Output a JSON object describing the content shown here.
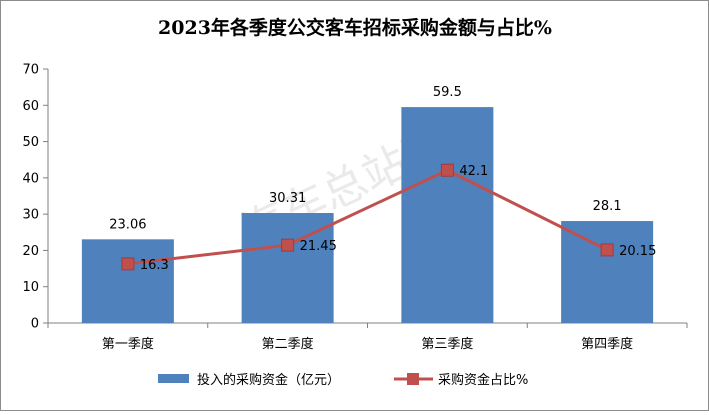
{
  "chart_data": {
    "type": "bar",
    "title": "2023年各季度公交客车招标采购金额与占比%",
    "categories": [
      "第一季度",
      "第二季度",
      "第三季度",
      "第四季度"
    ],
    "ylim": [
      0,
      70
    ],
    "yticks": [
      0,
      10,
      20,
      30,
      40,
      50,
      60,
      70
    ],
    "grid": false,
    "legend_position": "bottom",
    "series": [
      {
        "name": "投入的采购资金（亿元）",
        "kind": "bar",
        "color": "#4f81bd",
        "values": [
          23.06,
          30.31,
          59.5,
          28.1
        ],
        "labels": [
          "23.06",
          "30.31",
          "59.5",
          "28.1"
        ]
      },
      {
        "name": "采购资金占比%",
        "kind": "line",
        "color": "#c0504d",
        "values": [
          16.3,
          21.45,
          42.1,
          20.15
        ],
        "labels": [
          "16.3",
          "21.45",
          "42.1",
          "20.15"
        ]
      }
    ],
    "watermark": "汽车总站网"
  }
}
